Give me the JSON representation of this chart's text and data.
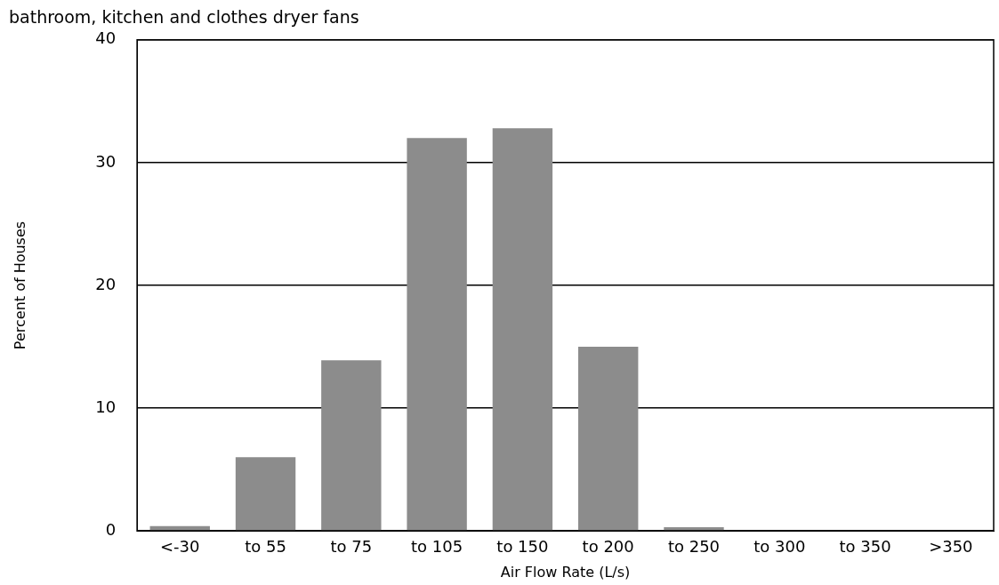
{
  "chart_data": {
    "type": "bar",
    "title": "bathroom, kitchen and clothes dryer fans",
    "xlabel": "Air Flow Rate (L/s)",
    "ylabel": "Percent of Houses",
    "categories": [
      "<-30",
      "to 55",
      "to 75",
      "to 105",
      "to 150",
      "to 200",
      "to 250",
      "to 300",
      "to 350",
      ">350"
    ],
    "values": [
      0.4,
      6,
      13.9,
      32,
      32.8,
      15,
      0.3,
      0,
      0,
      0
    ],
    "color": "#8c8c8c",
    "ylim": [
      0,
      40
    ],
    "yticks": [
      0,
      10,
      20,
      30,
      40
    ],
    "grid": "y",
    "legend": false
  }
}
